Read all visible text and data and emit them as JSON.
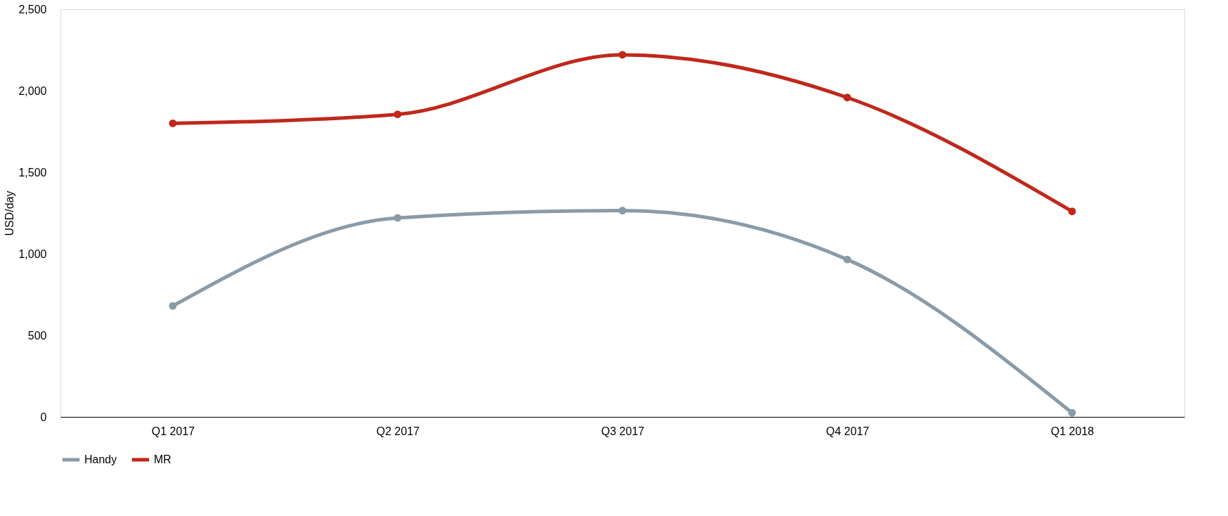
{
  "chart_data": {
    "type": "line",
    "ylabel": "USD/day",
    "categories": [
      "Q1 2017",
      "Q2 2017",
      "Q3 2017",
      "Q4 2017",
      "Q1 2018"
    ],
    "series": [
      {
        "name": "Handy",
        "color": "#8a9ba8",
        "values": [
          680,
          1220,
          1265,
          965,
          25
        ]
      },
      {
        "name": "MR",
        "color": "#c0281c",
        "values": [
          1800,
          1855,
          2220,
          1958,
          1260
        ]
      }
    ],
    "ylim": [
      0,
      2500
    ],
    "yticks": [
      {
        "value": 0,
        "label": "0"
      },
      {
        "value": 500,
        "label": "500"
      },
      {
        "value": 1000,
        "label": "1,000"
      },
      {
        "value": 1500,
        "label": "1,500"
      },
      {
        "value": 2000,
        "label": "2,000"
      },
      {
        "value": 2500,
        "label": "2,500"
      }
    ],
    "grid": false,
    "legend": "bottom",
    "marker": "circle",
    "line_style": "solid"
  }
}
